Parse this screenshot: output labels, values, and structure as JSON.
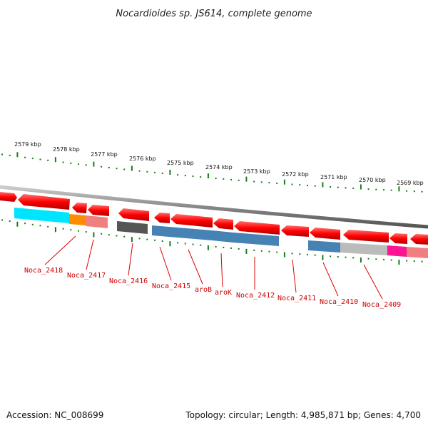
{
  "title": "Nocardioides sp. JS614, complete genome",
  "accession": "Accession: NC_008699",
  "topology": "Topology: circular; Length: 4,985,871 bp; Genes: 4,700",
  "scale_labels": [
    "2579 kbp",
    "2578 kbp",
    "2577 kbp",
    "2576 kbp",
    "2575 kbp",
    "2574 kbp",
    "2573 kbp",
    "2572 kbp",
    "2571 kbp",
    "2570 kbp",
    "2569 kbp"
  ],
  "gene_labels": [
    "Noca_2418",
    "Noca_2417",
    "Noca_2416",
    "Noca_2415",
    "aroB",
    "aroK",
    "Noca_2412",
    "Noca_2411",
    "Noca_2410",
    "Noca_2409"
  ],
  "colors": {
    "forward_gene": "#ff0000",
    "backbone": "#888888",
    "tick": "#1a7a1a",
    "label": "#cc0000",
    "cyan": "#00e5ff",
    "orange": "#ff8c00",
    "salmon": "#f08080",
    "darkgray": "#555555",
    "steelblue": "#4682b4",
    "lightgray": "#bbbbbb",
    "magenta": "#ff1493"
  }
}
